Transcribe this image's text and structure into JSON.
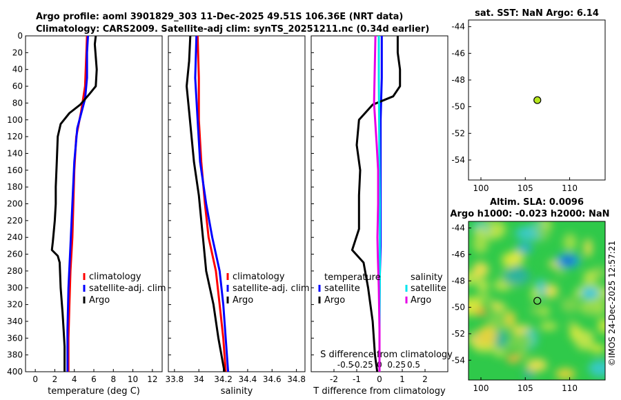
{
  "figure": {
    "title_line1": "Argo profile: aoml 3901829_303 11-Dec-2025 49.51S 106.36E (NRT data)",
    "title_line2": "Climatology: CARS2009. Satellite-adj clim: synTS_20251211.nc (0.34d earlier)",
    "watermark": "©IMOS 24-Dec-2025 12:57:21"
  },
  "colors": {
    "argo": "#000000",
    "climatology": "#ff0000",
    "satellite": "#0000ff",
    "t_sat": "#00e5ee",
    "s_argo": "#e600e6",
    "s_sat": "#0000ff",
    "map_bg": "#2fc94a",
    "marker": "#b5e61d"
  },
  "chart_data": [
    {
      "type": "line",
      "name": "temperature",
      "xlabel": "temperature (deg C)",
      "xlim": [
        -1,
        13
      ],
      "ylim": [
        400,
        0
      ],
      "xticks": [
        0,
        2,
        4,
        6,
        8,
        10,
        12
      ],
      "xtick_labels": [
        "0",
        "2",
        "4",
        "6",
        "8",
        "10",
        "12"
      ],
      "yticks": [
        0,
        20,
        40,
        60,
        80,
        100,
        120,
        140,
        160,
        180,
        200,
        220,
        240,
        260,
        280,
        300,
        320,
        340,
        360,
        380,
        400
      ],
      "ytick_labels": [
        "0",
        "20",
        "40",
        "60",
        "80",
        "100",
        "120",
        "140",
        "160",
        "180",
        "200",
        "220",
        "240",
        "260",
        "280",
        "300",
        "320",
        "340",
        "360",
        "380",
        "400"
      ],
      "legend": [
        "climatology",
        "satellite-adj. clim",
        "Argo"
      ],
      "series": [
        {
          "name": "climatology",
          "color": "#ff0000",
          "points": [
            [
              5.3,
              0
            ],
            [
              5.2,
              30
            ],
            [
              5.1,
              60
            ],
            [
              4.7,
              90
            ],
            [
              4.2,
              120
            ],
            [
              4.0,
              160
            ],
            [
              3.9,
              200
            ],
            [
              3.8,
              240
            ],
            [
              3.6,
              280
            ],
            [
              3.5,
              320
            ],
            [
              3.4,
              360
            ],
            [
              3.4,
              400
            ]
          ]
        },
        {
          "name": "satellite-adj. clim",
          "color": "#0000ff",
          "points": [
            [
              5.4,
              0
            ],
            [
              5.3,
              20
            ],
            [
              5.3,
              50
            ],
            [
              5.1,
              75
            ],
            [
              4.3,
              110
            ],
            [
              4.0,
              150
            ],
            [
              3.8,
              200
            ],
            [
              3.6,
              250
            ],
            [
              3.4,
              300
            ],
            [
              3.3,
              350
            ],
            [
              3.3,
              400
            ]
          ]
        },
        {
          "name": "Argo",
          "color": "#000000",
          "points": [
            [
              6.2,
              0
            ],
            [
              6.1,
              10
            ],
            [
              6.3,
              40
            ],
            [
              6.2,
              60
            ],
            [
              5.5,
              70
            ],
            [
              4.6,
              82
            ],
            [
              3.5,
              92
            ],
            [
              2.6,
              105
            ],
            [
              2.3,
              120
            ],
            [
              2.2,
              150
            ],
            [
              2.1,
              180
            ],
            [
              2.1,
              200
            ],
            [
              2.0,
              220
            ],
            [
              1.8,
              245
            ],
            [
              1.7,
              255
            ],
            [
              2.3,
              262
            ],
            [
              2.5,
              270
            ],
            [
              2.6,
              300
            ],
            [
              2.8,
              330
            ],
            [
              2.9,
              350
            ],
            [
              3.0,
              370
            ],
            [
              3.0,
              400
            ]
          ]
        }
      ]
    },
    {
      "type": "line",
      "name": "salinity",
      "xlabel": "salinity",
      "xlim": [
        33.75,
        34.87
      ],
      "ylim": [
        400,
        0
      ],
      "xticks": [
        33.8,
        34.0,
        34.2,
        34.4,
        34.6,
        34.8
      ],
      "xtick_labels": [
        "33.8",
        "34",
        "34.2",
        "34.4",
        "34.6",
        "34.8"
      ],
      "legend": [
        "climatology",
        "satellite-adj. clim",
        "Argo"
      ],
      "series": [
        {
          "name": "climatology",
          "color": "#ff0000",
          "points": [
            [
              33.99,
              0
            ],
            [
              34.0,
              50
            ],
            [
              34.0,
              100
            ],
            [
              34.02,
              150
            ],
            [
              34.05,
              200
            ],
            [
              34.08,
              240
            ],
            [
              34.14,
              280
            ],
            [
              34.17,
              320
            ],
            [
              34.2,
              360
            ],
            [
              34.22,
              400
            ]
          ]
        },
        {
          "name": "satellite-adj. clim",
          "color": "#0000ff",
          "points": [
            [
              33.98,
              0
            ],
            [
              33.97,
              50
            ],
            [
              33.99,
              100
            ],
            [
              34.01,
              150
            ],
            [
              34.06,
              200
            ],
            [
              34.11,
              240
            ],
            [
              34.17,
              280
            ],
            [
              34.2,
              320
            ],
            [
              34.22,
              360
            ],
            [
              34.24,
              400
            ]
          ]
        },
        {
          "name": "Argo",
          "color": "#000000",
          "points": [
            [
              33.93,
              0
            ],
            [
              33.92,
              30
            ],
            [
              33.9,
              60
            ],
            [
              33.92,
              90
            ],
            [
              33.94,
              120
            ],
            [
              33.96,
              150
            ],
            [
              34.0,
              190
            ],
            [
              34.02,
              220
            ],
            [
              34.04,
              250
            ],
            [
              34.06,
              280
            ],
            [
              34.12,
              320
            ],
            [
              34.16,
              360
            ],
            [
              34.21,
              400
            ]
          ]
        }
      ]
    },
    {
      "type": "line",
      "name": "difference",
      "xlabel": "T difference from climatology",
      "xlim": [
        -3,
        3
      ],
      "ylim": [
        400,
        0
      ],
      "xticks": [
        -2,
        -1,
        0,
        1,
        2
      ],
      "xtick_labels": [
        "-2",
        "-1",
        "0",
        "1",
        "2"
      ],
      "top_label": "S difference from climatology",
      "top_ticks": [
        -0.5,
        -0.25,
        0,
        0.25,
        0.5
      ],
      "top_tick_labels": [
        "-0.5",
        "-0.25",
        "0",
        "0.25",
        "0.5"
      ],
      "top_range": [
        -1.0,
        1.0
      ],
      "legend_temperature_title": "temperature",
      "legend_salinity_title": "salinity",
      "legend_temperature": [
        "satellite",
        "Argo"
      ],
      "legend_salinity": [
        "satellite",
        "Argo"
      ],
      "series": [
        {
          "name": "T satellite",
          "color": "#0000ff",
          "points": [
            [
              0.1,
              0
            ],
            [
              0.1,
              50
            ],
            [
              0.05,
              100
            ],
            [
              0.05,
              150
            ],
            [
              0.05,
              200
            ],
            [
              0.05,
              250
            ],
            [
              0.0,
              300
            ],
            [
              0.0,
              350
            ],
            [
              0.0,
              400
            ]
          ]
        },
        {
          "name": "T Argo",
          "color": "#000000",
          "points": [
            [
              0.8,
              0
            ],
            [
              0.8,
              20
            ],
            [
              0.9,
              40
            ],
            [
              0.9,
              60
            ],
            [
              0.6,
              72
            ],
            [
              -0.3,
              82
            ],
            [
              -0.9,
              100
            ],
            [
              -1.0,
              130
            ],
            [
              -0.85,
              160
            ],
            [
              -0.9,
              190
            ],
            [
              -0.9,
              230
            ],
            [
              -1.2,
              255
            ],
            [
              -0.7,
              270
            ],
            [
              -0.5,
              300
            ],
            [
              -0.3,
              340
            ],
            [
              -0.2,
              380
            ],
            [
              -0.1,
              400
            ]
          ]
        },
        {
          "name": "S satellite",
          "color": "#00e5ee",
          "points": [
            [
              -0.01,
              0
            ],
            [
              -0.01,
              50
            ],
            [
              -0.005,
              100
            ],
            [
              0.0,
              160
            ],
            [
              0.005,
              200
            ],
            [
              0.005,
              260
            ],
            [
              0.005,
              300
            ],
            [
              0.0,
              350
            ],
            [
              0.0,
              400
            ]
          ]
        },
        {
          "name": "S Argo",
          "color": "#e600e6",
          "points": [
            [
              -0.06,
              0
            ],
            [
              -0.07,
              40
            ],
            [
              -0.08,
              80
            ],
            [
              -0.04,
              130
            ],
            [
              -0.02,
              160
            ],
            [
              -0.02,
              200
            ],
            [
              -0.03,
              240
            ],
            [
              -0.025,
              260
            ],
            [
              -0.01,
              300
            ],
            [
              0.0,
              350
            ],
            [
              0.0,
              400
            ]
          ]
        }
      ]
    },
    {
      "type": "scatter",
      "name": "sst_map",
      "title": "sat. SST: NaN Argo: 6.14",
      "xlim": [
        98.6,
        114
      ],
      "ylim": [
        -55.5,
        -43.5
      ],
      "xticks": [
        100,
        105,
        110
      ],
      "xtick_labels": [
        "100",
        "105",
        "110"
      ],
      "yticks": [
        -54,
        -52,
        -50,
        -48,
        -46,
        -44
      ],
      "ytick_labels": [
        "-54",
        "-52",
        "-50",
        "-48",
        "-46",
        "-44"
      ],
      "points": [
        {
          "lon": 106.36,
          "lat": -49.51,
          "argo_sst": 6.14
        }
      ]
    },
    {
      "type": "heatmap",
      "name": "sla_map",
      "title_line1": "Altim. SLA: 0.0096",
      "title_line2": "Argo h1000: -0.023 h2000: NaN",
      "xlim": [
        98.6,
        114
      ],
      "ylim": [
        -55.5,
        -43.5
      ],
      "xticks": [
        100,
        105,
        110
      ],
      "xtick_labels": [
        "100",
        "105",
        "110"
      ],
      "yticks": [
        -54,
        -52,
        -50,
        -48,
        -46,
        -44
      ],
      "ytick_labels": [
        "-54",
        "-52",
        "-50",
        "-48",
        "-46",
        "-44"
      ],
      "point": {
        "lon": 106.36,
        "lat": -49.51
      }
    }
  ]
}
